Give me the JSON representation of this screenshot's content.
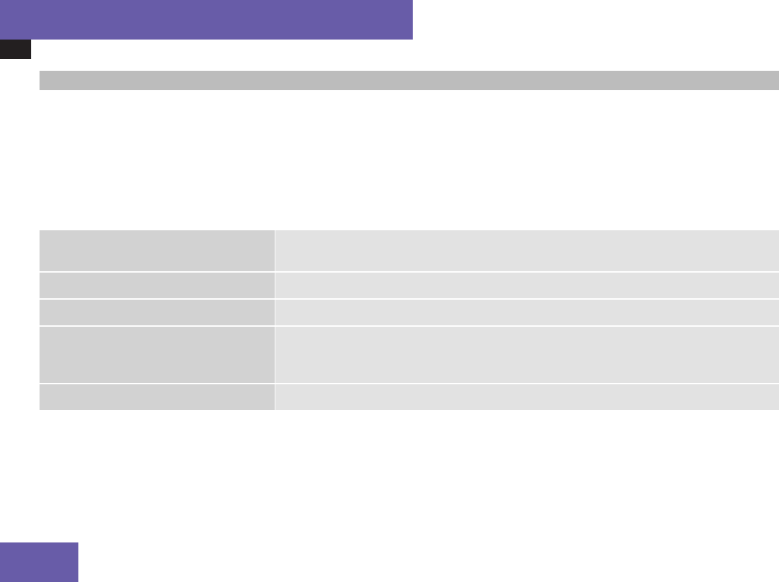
{
  "colors": {
    "accent": "#685ca8",
    "dark_tab": "#231f20",
    "section_bar": "#bcbcbc",
    "cell_label": "#d2d2d2",
    "cell_value": "#e2e2e2"
  },
  "table": {
    "rows": [
      {
        "label": "",
        "value": ""
      },
      {
        "label": "",
        "value": ""
      },
      {
        "label": "",
        "value": ""
      },
      {
        "label": "",
        "value": ""
      },
      {
        "label": "",
        "value": ""
      }
    ]
  }
}
